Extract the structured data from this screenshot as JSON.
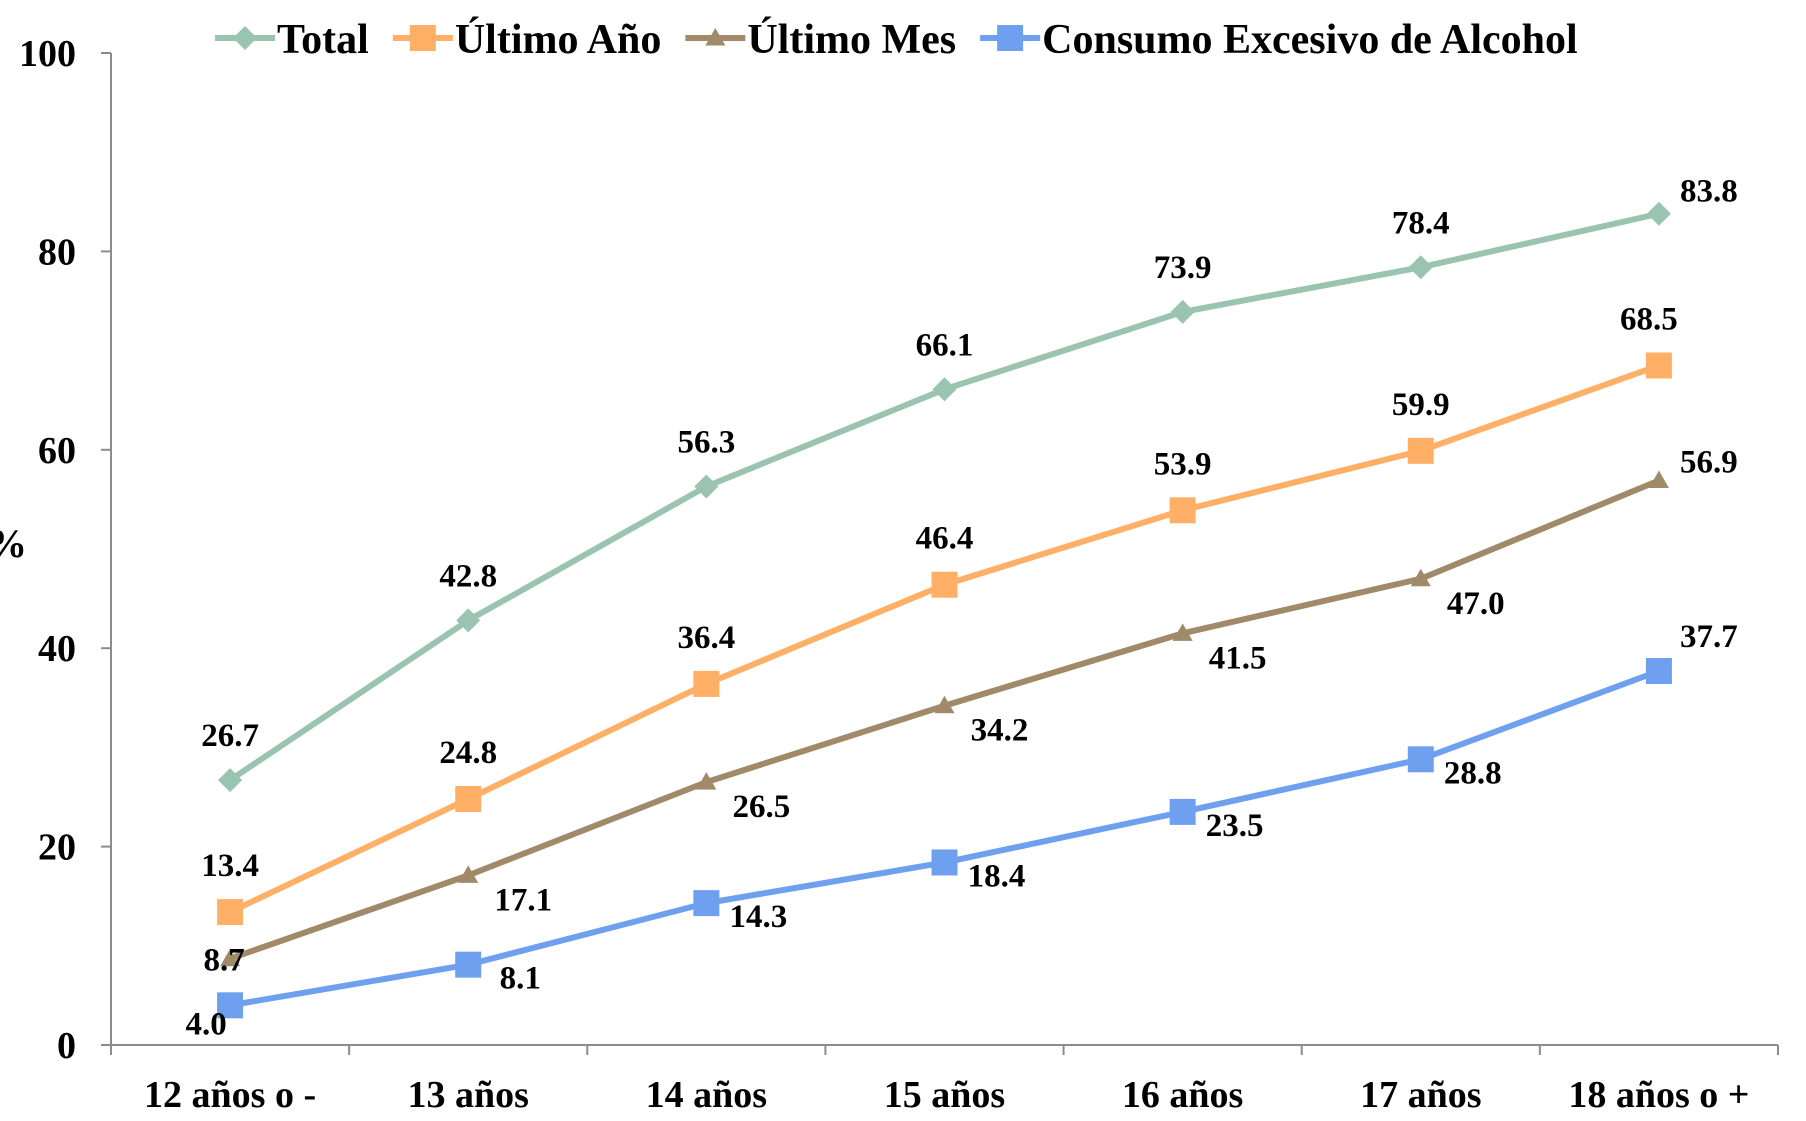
{
  "chart_data": {
    "type": "line",
    "categories": [
      "12 años o -",
      "13 años",
      "14 años",
      "15 años",
      "16 años",
      "17 años",
      "18 años o +"
    ],
    "series": [
      {
        "name": "Total",
        "values": [
          26.7,
          42.8,
          56.3,
          66.1,
          73.9,
          78.4,
          83.8
        ],
        "color": "#9BC4B0",
        "marker": "diamond"
      },
      {
        "name": "Último Año",
        "values": [
          13.4,
          24.8,
          36.4,
          46.4,
          53.9,
          59.9,
          68.5
        ],
        "color": "#FFB066",
        "marker": "square"
      },
      {
        "name": "Último Mes",
        "values": [
          8.7,
          17.1,
          26.5,
          34.2,
          41.5,
          47.0,
          56.9
        ],
        "color": "#A08A6A",
        "marker": "triangle"
      },
      {
        "name": "Consumo Excesivo de Alcohol",
        "values": [
          4.0,
          8.1,
          14.3,
          18.4,
          23.5,
          28.8,
          37.7
        ],
        "color": "#6FA0F0",
        "marker": "square"
      }
    ],
    "value_labels": {
      "Total": [
        "26.7",
        "42.8",
        "56.3",
        "66.1",
        "73.9",
        "78.4",
        "83.8"
      ],
      "Último Año": [
        "13.4",
        "24.8",
        "36.4",
        "46.4",
        "53.9",
        "59.9",
        "68.5"
      ],
      "Último Mes": [
        "8.7",
        "17.1",
        "26.5",
        "34.2",
        "41.5",
        "47.0",
        "56.9"
      ],
      "Consumo Excesivo de Alcohol": [
        "4.0",
        "8.1",
        "14.3",
        "18.4",
        "23.5",
        "28.8",
        "37.7"
      ]
    },
    "yticks": [
      "0",
      "20",
      "40",
      "60",
      "80",
      "100"
    ],
    "ylim": [
      0,
      100
    ],
    "ylabel": "%",
    "xlabel": "",
    "title": "",
    "grid": false,
    "legend_position": "top"
  }
}
